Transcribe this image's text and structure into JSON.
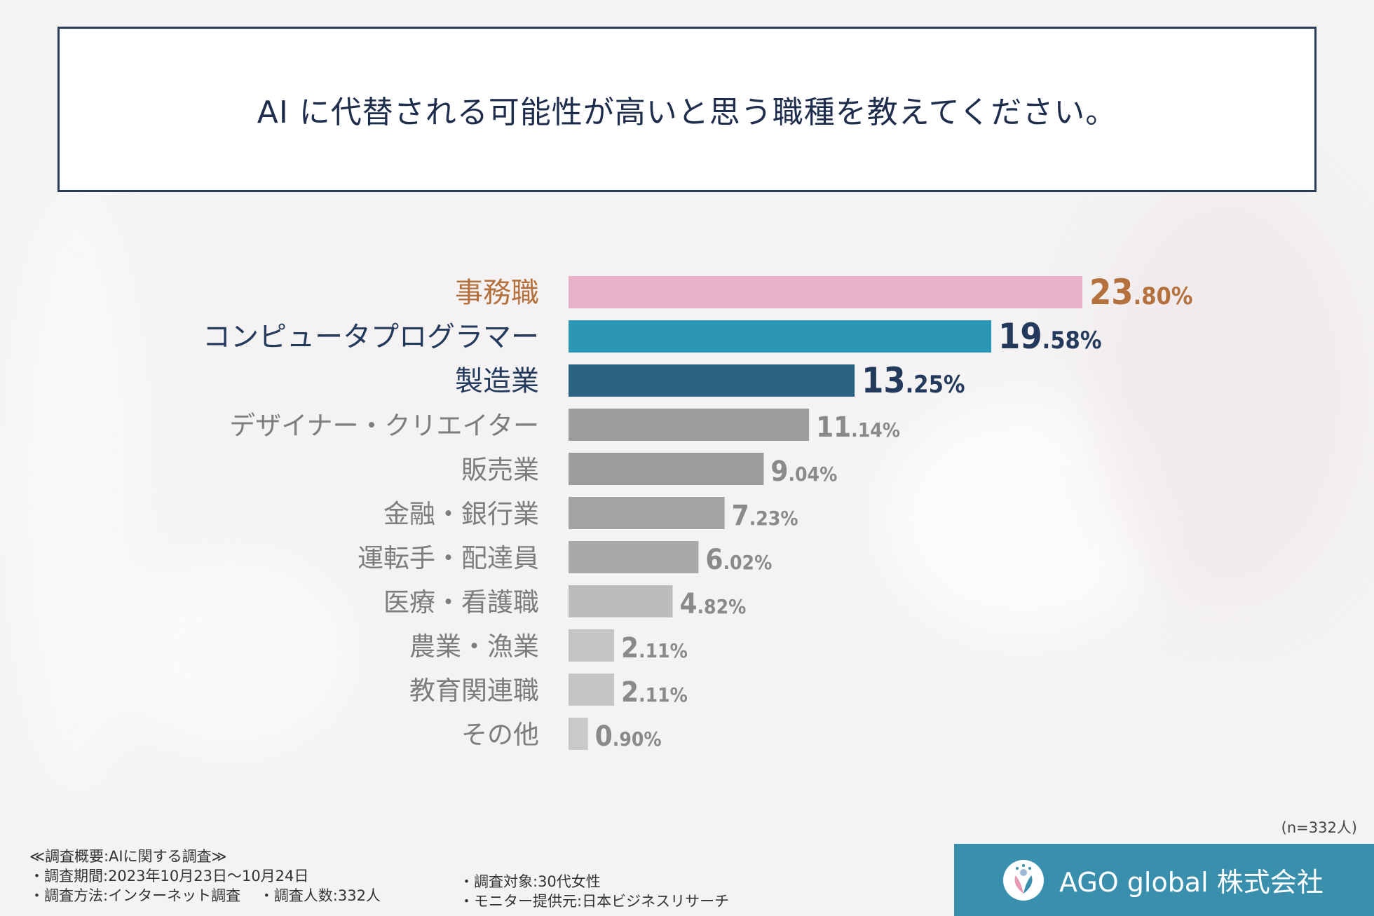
{
  "title": "AI に代替される可能性が高いと思う職種を教えてください。",
  "chart_data": {
    "type": "bar",
    "orientation": "horizontal",
    "unit": "%",
    "xlim": [
      0,
      23.8
    ],
    "categories": [
      "事務職",
      "コンピュータプログラマー",
      "製造業",
      "デザイナー・クリエイター",
      "販売業",
      "金融・銀行業",
      "運転手・配達員",
      "医療・看護職",
      "農業・漁業",
      "教育関連職",
      "その他"
    ],
    "values": [
      23.8,
      19.58,
      13.25,
      11.14,
      9.04,
      7.23,
      6.02,
      4.82,
      2.11,
      2.11,
      0.9
    ],
    "value_labels": [
      {
        "int": "23",
        "dec": ".80%"
      },
      {
        "int": "19",
        "dec": ".58%"
      },
      {
        "int": "13",
        "dec": ".25%"
      },
      {
        "int": "11",
        "dec": ".14%"
      },
      {
        "int": "9",
        "dec": ".04%"
      },
      {
        "int": "7",
        "dec": ".23%"
      },
      {
        "int": "6",
        "dec": ".02%"
      },
      {
        "int": "4",
        "dec": ".82%"
      },
      {
        "int": "2",
        "dec": ".11%"
      },
      {
        "int": "2",
        "dec": ".11%"
      },
      {
        "int": "0",
        "dec": ".90%"
      }
    ],
    "bar_colors": [
      "#e8b2c8",
      "#2b97b5",
      "#2a6482",
      "#9c9c9c",
      "#9c9c9c",
      "#a3a3a3",
      "#a9a9a9",
      "#bcbcbc",
      "#c5c5c5",
      "#c5c5c5",
      "#c9c9c9"
    ],
    "label_colors": [
      "#b5713d",
      "#233a5c",
      "#233a5c",
      "#7d7d7d",
      "#7d7d7d",
      "#7d7d7d",
      "#7d7d7d",
      "#7d7d7d",
      "#7d7d7d",
      "#7d7d7d",
      "#7d7d7d"
    ],
    "value_colors": [
      "#b5713d",
      "#233a5c",
      "#233a5c",
      "#8a8a8a",
      "#8a8a8a",
      "#8a8a8a",
      "#8a8a8a",
      "#8a8a8a",
      "#8a8a8a",
      "#8a8a8a",
      "#8a8a8a"
    ]
  },
  "sample_size": "(n=332人)",
  "survey": {
    "heading": "≪調査概要:AIに関する調査≫",
    "period": "・調査期間:2023年10月23日〜10月24日",
    "method": "・調査方法:インターネット調査",
    "count": "・調査人数:332人",
    "target": "・調査対象:30代女性",
    "provider": "・モニター提供元:日本ビジネスリサーチ"
  },
  "brand": "AGO global 株式会社"
}
